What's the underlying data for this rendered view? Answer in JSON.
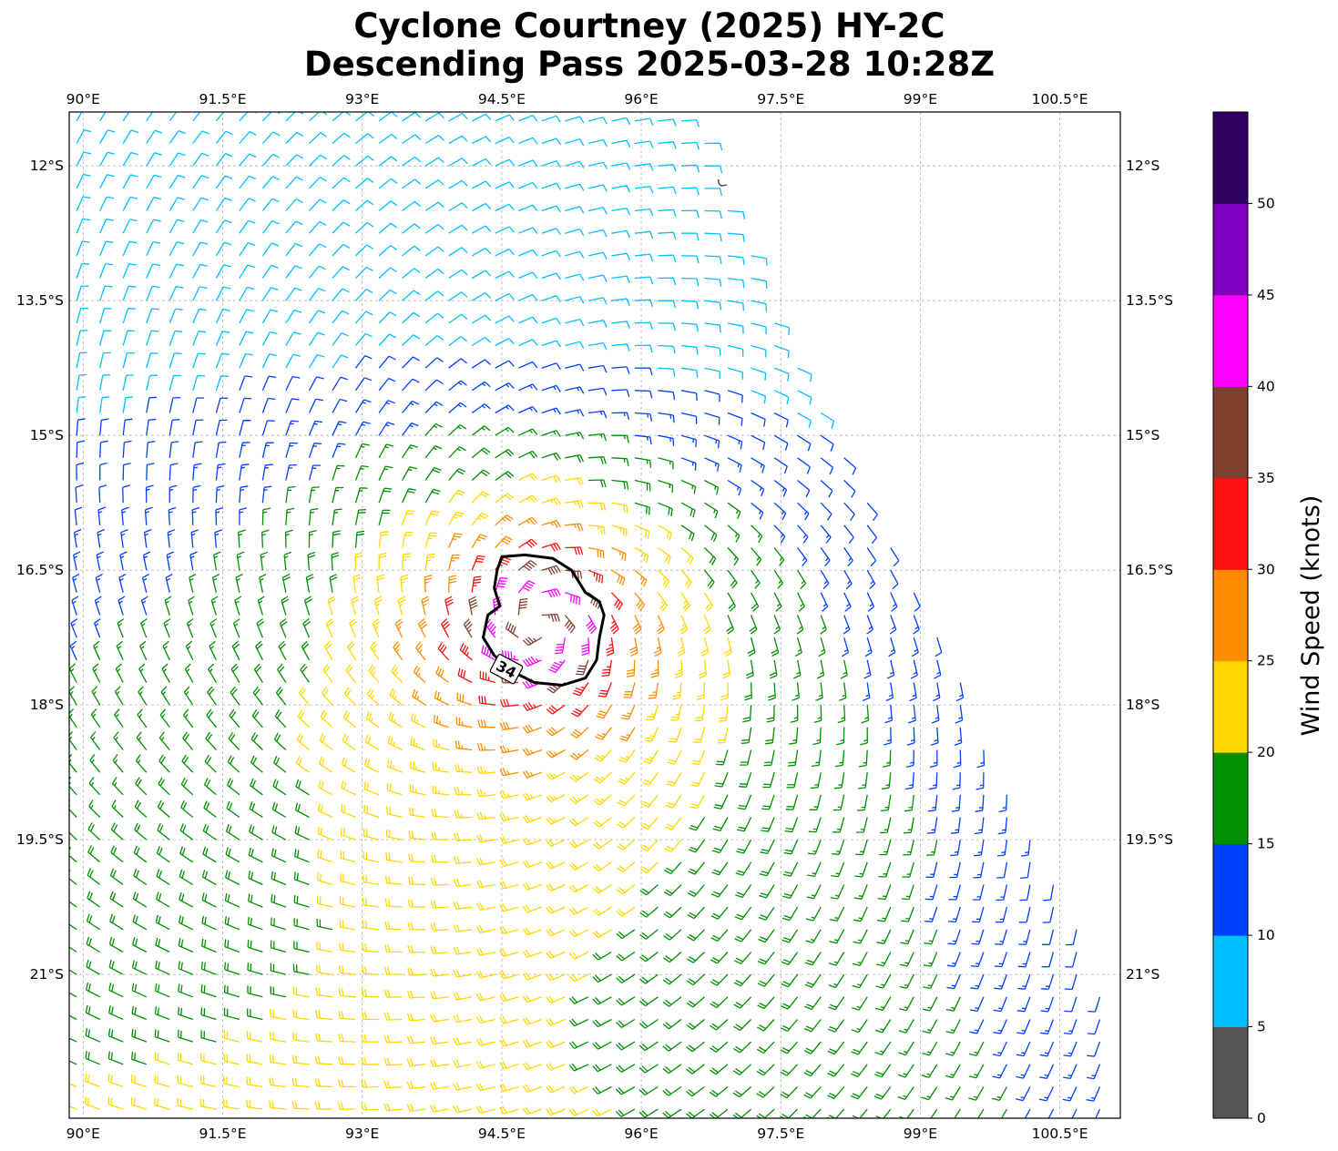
{
  "title": {
    "line1": "Cyclone Courtney (2025) HY-2C",
    "line2": "Descending Pass 2025-03-28 10:28Z"
  },
  "chart_data": {
    "type": "wind-barb-map",
    "lon_range": [
      89.85,
      101.15
    ],
    "lat_range": [
      -22.6,
      -11.4
    ],
    "lon_ticks": [
      {
        "value": 90.0,
        "label": "90°E"
      },
      {
        "value": 91.5,
        "label": "91.5°E"
      },
      {
        "value": 93.0,
        "label": "93°E"
      },
      {
        "value": 94.5,
        "label": "94.5°E"
      },
      {
        "value": 96.0,
        "label": "96°E"
      },
      {
        "value": 97.5,
        "label": "97.5°E"
      },
      {
        "value": 99.0,
        "label": "99°E"
      },
      {
        "value": 100.5,
        "label": "100.5°E"
      }
    ],
    "lat_ticks": [
      {
        "value": -12.0,
        "label": "12°S"
      },
      {
        "value": -13.5,
        "label": "13.5°S"
      },
      {
        "value": -15.0,
        "label": "15°S"
      },
      {
        "value": -16.5,
        "label": "16.5°S"
      },
      {
        "value": -18.0,
        "label": "18°S"
      },
      {
        "value": -19.5,
        "label": "19.5°S"
      },
      {
        "value": -21.0,
        "label": "21°S"
      }
    ],
    "grid": true,
    "cyclone_center": {
      "lon": 94.9,
      "lat": -17.1
    },
    "contour": {
      "label": "34",
      "level_kt": 34,
      "label_lon": 94.55,
      "label_lat": -17.6,
      "points": [
        [
          94.5,
          -16.35
        ],
        [
          94.75,
          -16.33
        ],
        [
          95.05,
          -16.37
        ],
        [
          95.25,
          -16.5
        ],
        [
          95.4,
          -16.75
        ],
        [
          95.55,
          -16.85
        ],
        [
          95.6,
          -17.0
        ],
        [
          95.55,
          -17.25
        ],
        [
          95.52,
          -17.5
        ],
        [
          95.4,
          -17.7
        ],
        [
          95.15,
          -17.78
        ],
        [
          94.85,
          -17.75
        ],
        [
          94.6,
          -17.62
        ],
        [
          94.42,
          -17.45
        ],
        [
          94.3,
          -17.25
        ],
        [
          94.35,
          -17.0
        ],
        [
          94.48,
          -16.9
        ],
        [
          94.42,
          -16.7
        ],
        [
          94.45,
          -16.5
        ],
        [
          94.5,
          -16.35
        ]
      ]
    },
    "swath": {
      "description": "descending satellite swath, right edge",
      "edge_points": [
        [
          96.6,
          -11.4
        ],
        [
          97.5,
          -13.8
        ],
        [
          99.2,
          -17.2
        ],
        [
          101.15,
          -21.5
        ],
        [
          101.15,
          -22.6
        ]
      ]
    },
    "barb_spacing_deg": 0.25,
    "max_wind_kt": 43,
    "wind_units": "knots"
  },
  "colorbar": {
    "label": "Wind Speed (knots)",
    "tick_labels": [
      "0",
      "5",
      "10",
      "15",
      "20",
      "25",
      "30",
      "35",
      "40",
      "45",
      "50"
    ],
    "bins": [
      {
        "min": 0,
        "max": 5,
        "color": "#555555"
      },
      {
        "min": 5,
        "max": 10,
        "color": "#00bfff"
      },
      {
        "min": 10,
        "max": 15,
        "color": "#0040ff"
      },
      {
        "min": 15,
        "max": 20,
        "color": "#009000"
      },
      {
        "min": 20,
        "max": 25,
        "color": "#ffd700"
      },
      {
        "min": 25,
        "max": 30,
        "color": "#ff8c00"
      },
      {
        "min": 30,
        "max": 35,
        "color": "#ff1010"
      },
      {
        "min": 35,
        "max": 40,
        "color": "#804030"
      },
      {
        "min": 40,
        "max": 45,
        "color": "#ff00ff"
      },
      {
        "min": 45,
        "max": 50,
        "color": "#8000c0"
      },
      {
        "min": 50,
        "max": 55,
        "color": "#300060"
      }
    ]
  }
}
